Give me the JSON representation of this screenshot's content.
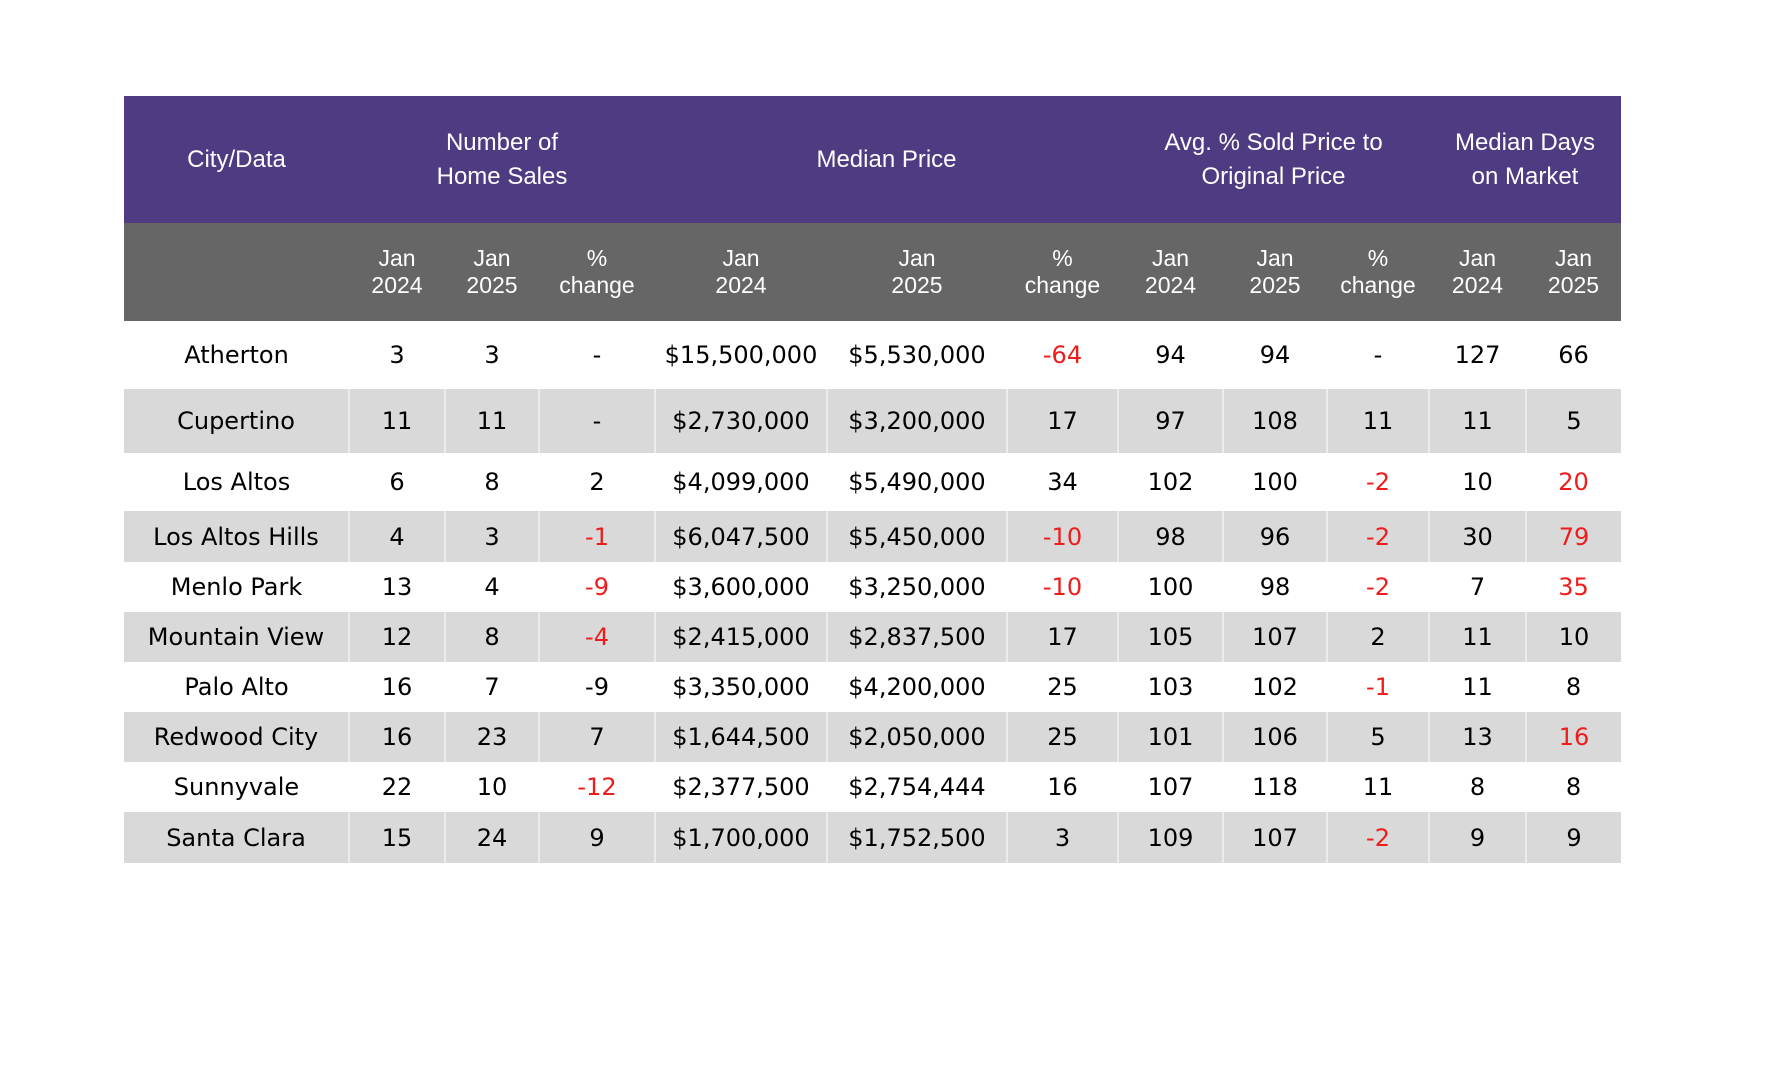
{
  "headers": {
    "city": "City/Data",
    "home_sales": [
      "Number of",
      "Home Sales"
    ],
    "median_price": "Median Price",
    "sold_ratio": [
      "Avg. % Sold Price to",
      "Original Price"
    ],
    "days_on_market": [
      "Median Days",
      "on Market"
    ]
  },
  "subheaders": [
    [
      "Jan",
      "2024"
    ],
    [
      "Jan",
      "2025"
    ],
    [
      "%",
      "change"
    ],
    [
      "Jan",
      "2024"
    ],
    [
      "Jan",
      "2025"
    ],
    [
      "%",
      "change"
    ],
    [
      "Jan",
      "2024"
    ],
    [
      "Jan",
      "2025"
    ],
    [
      "%",
      "change"
    ],
    [
      "Jan",
      "2024"
    ],
    [
      "Jan",
      "2025"
    ]
  ],
  "colors": {
    "header_purple": "#4f3b82",
    "subheader_gray": "#666666",
    "negative_red": "#ee1c1c",
    "row_stripe": "#d9d9d9"
  },
  "rows": [
    {
      "cells": [
        "Atherton",
        "3",
        "3",
        "-",
        "$15,500,000",
        "$5,530,000",
        "-64",
        "94",
        "94",
        "-",
        "127",
        "66"
      ],
      "red": [
        false,
        false,
        false,
        false,
        false,
        false,
        true,
        false,
        false,
        false,
        false,
        false
      ]
    },
    {
      "cells": [
        "Cupertino",
        "11",
        "11",
        "-",
        "$2,730,000",
        "$3,200,000",
        "17",
        "97",
        "108",
        "11",
        "11",
        "5"
      ],
      "red": [
        false,
        false,
        false,
        false,
        false,
        false,
        false,
        false,
        false,
        false,
        false,
        false
      ]
    },
    {
      "cells": [
        "Los Altos",
        "6",
        "8",
        "2",
        "$4,099,000",
        "$5,490,000",
        "34",
        "102",
        "100",
        "-2",
        "10",
        "20"
      ],
      "red": [
        false,
        false,
        false,
        false,
        false,
        false,
        false,
        false,
        false,
        true,
        false,
        true
      ]
    },
    {
      "cells": [
        "Los Altos Hills",
        "4",
        "3",
        "-1",
        "$6,047,500",
        "$5,450,000",
        "-10",
        "98",
        "96",
        "-2",
        "30",
        "79"
      ],
      "red": [
        false,
        false,
        false,
        true,
        false,
        false,
        true,
        false,
        false,
        true,
        false,
        true
      ]
    },
    {
      "cells": [
        "Menlo Park",
        "13",
        "4",
        "-9",
        "$3,600,000",
        "$3,250,000",
        "-10",
        "100",
        "98",
        "-2",
        "7",
        "35"
      ],
      "red": [
        false,
        false,
        false,
        true,
        false,
        false,
        true,
        false,
        false,
        true,
        false,
        true
      ]
    },
    {
      "cells": [
        "Mountain View",
        "12",
        "8",
        "-4",
        "$2,415,000",
        "$2,837,500",
        "17",
        "105",
        "107",
        "2",
        "11",
        "10"
      ],
      "red": [
        false,
        false,
        false,
        true,
        false,
        false,
        false,
        false,
        false,
        false,
        false,
        false
      ]
    },
    {
      "cells": [
        "Palo Alto",
        "16",
        "7",
        "-9",
        "$3,350,000",
        "$4,200,000",
        "25",
        "103",
        "102",
        "-1",
        "11",
        "8"
      ],
      "red": [
        false,
        false,
        false,
        false,
        false,
        false,
        false,
        false,
        false,
        true,
        false,
        false
      ]
    },
    {
      "cells": [
        "Redwood City",
        "16",
        "23",
        "7",
        "$1,644,500",
        "$2,050,000",
        "25",
        "101",
        "106",
        "5",
        "13",
        "16"
      ],
      "red": [
        false,
        false,
        false,
        false,
        false,
        false,
        false,
        false,
        false,
        false,
        false,
        true
      ]
    },
    {
      "cells": [
        "Sunnyvale",
        "22",
        "10",
        "-12",
        "$2,377,500",
        "$2,754,444",
        "16",
        "107",
        "118",
        "11",
        "8",
        "8"
      ],
      "red": [
        false,
        false,
        false,
        true,
        false,
        false,
        false,
        false,
        false,
        false,
        false,
        false
      ]
    },
    {
      "cells": [
        "Santa Clara",
        "15",
        "24",
        "9",
        "$1,700,000",
        "$1,752,500",
        "3",
        "109",
        "107",
        "-2",
        "9",
        "9"
      ],
      "red": [
        false,
        false,
        false,
        false,
        false,
        false,
        false,
        false,
        false,
        true,
        false,
        false
      ]
    }
  ]
}
